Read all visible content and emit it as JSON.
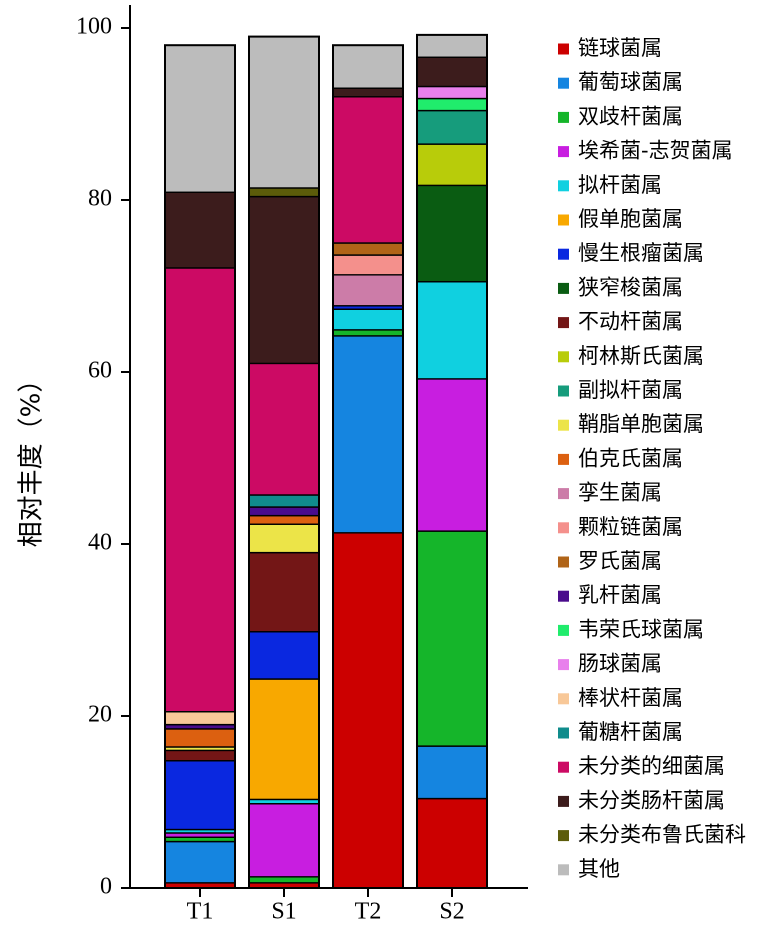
{
  "chart_data": {
    "type": "bar",
    "stacked": true,
    "ylabel": "相对丰度（%）",
    "ylim": [
      0,
      100
    ],
    "yticks": [
      0,
      20,
      40,
      60,
      80,
      100
    ],
    "categories": [
      "T1",
      "S1",
      "T2",
      "S2"
    ],
    "legend_position": "right",
    "series": [
      {
        "name": "链球菌属",
        "color": "#cc0000",
        "values": [
          0.6,
          0.6,
          41.3,
          10.4
        ]
      },
      {
        "name": "葡萄球菌属",
        "color": "#1585e0",
        "values": [
          4.8,
          0.0,
          22.9,
          6.1
        ]
      },
      {
        "name": "双歧杆菌属",
        "color": "#15b52a",
        "values": [
          0.5,
          0.7,
          0.7,
          25.0
        ]
      },
      {
        "name": "埃希菌-志贺菌属",
        "color": "#c81ee0",
        "values": [
          0.5,
          8.5,
          0.0,
          17.7
        ]
      },
      {
        "name": "拟杆菌属",
        "color": "#10d0e0",
        "values": [
          0.4,
          0.5,
          2.4,
          11.3
        ]
      },
      {
        "name": "假单胞菌属",
        "color": "#f8a800",
        "values": [
          0.0,
          14.0,
          0.0,
          0.0
        ]
      },
      {
        "name": "慢生根瘤菌属",
        "color": "#0a28e0",
        "values": [
          8.0,
          5.5,
          0.4,
          0.0
        ]
      },
      {
        "name": "狭窄梭菌属",
        "color": "#0a5c12",
        "values": [
          0.0,
          0.0,
          0.0,
          11.2
        ]
      },
      {
        "name": "不动杆菌属",
        "color": "#731616",
        "values": [
          1.2,
          9.2,
          0.0,
          0.0
        ]
      },
      {
        "name": "柯林斯氏菌属",
        "color": "#b8cc0a",
        "values": [
          0.0,
          0.0,
          0.0,
          4.8
        ]
      },
      {
        "name": "副拟杆菌属",
        "color": "#169c7c",
        "values": [
          0.0,
          0.0,
          0.0,
          3.9
        ]
      },
      {
        "name": "鞘脂单胞菌属",
        "color": "#ece448",
        "values": [
          0.4,
          3.3,
          0.0,
          0.0
        ]
      },
      {
        "name": "伯克氏菌属",
        "color": "#dc6010",
        "values": [
          2.1,
          1.0,
          0.0,
          0.0
        ]
      },
      {
        "name": "孪生菌属",
        "color": "#cc7ca8",
        "values": [
          0.0,
          0.0,
          3.6,
          0.0
        ]
      },
      {
        "name": "颗粒链菌属",
        "color": "#f4908c",
        "values": [
          0.0,
          0.0,
          2.3,
          0.0
        ]
      },
      {
        "name": "罗氏菌属",
        "color": "#b06418",
        "values": [
          0.0,
          0.0,
          1.4,
          0.0
        ]
      },
      {
        "name": "乳杆菌属",
        "color": "#4a0c8c",
        "values": [
          0.5,
          1.0,
          0.0,
          0.0
        ]
      },
      {
        "name": "韦荣氏球菌属",
        "color": "#20ec6c",
        "values": [
          0.0,
          0.0,
          0.0,
          1.4
        ]
      },
      {
        "name": "肠球菌属",
        "color": "#e880ec",
        "values": [
          0.0,
          0.0,
          0.0,
          1.4
        ]
      },
      {
        "name": "棒状杆菌属",
        "color": "#f8c898",
        "values": [
          1.5,
          0.0,
          0.0,
          0.0
        ]
      },
      {
        "name": "葡糖杆菌属",
        "color": "#108c8c",
        "values": [
          0.0,
          1.4,
          0.0,
          0.0
        ]
      },
      {
        "name": "未分类的细菌属",
        "color": "#cc0a64",
        "values": [
          51.6,
          15.3,
          17.0,
          0.0
        ]
      },
      {
        "name": "未分类肠杆菌属",
        "color": "#3c1c1c",
        "values": [
          8.8,
          19.4,
          1.0,
          3.4
        ]
      },
      {
        "name": "未分类布鲁氏菌科",
        "color": "#5c5c0a",
        "values": [
          0.0,
          1.0,
          0.0,
          0.0
        ]
      },
      {
        "name": "其他",
        "color": "#bcbcbc",
        "values": [
          17.1,
          17.6,
          5.0,
          2.6
        ]
      }
    ]
  }
}
